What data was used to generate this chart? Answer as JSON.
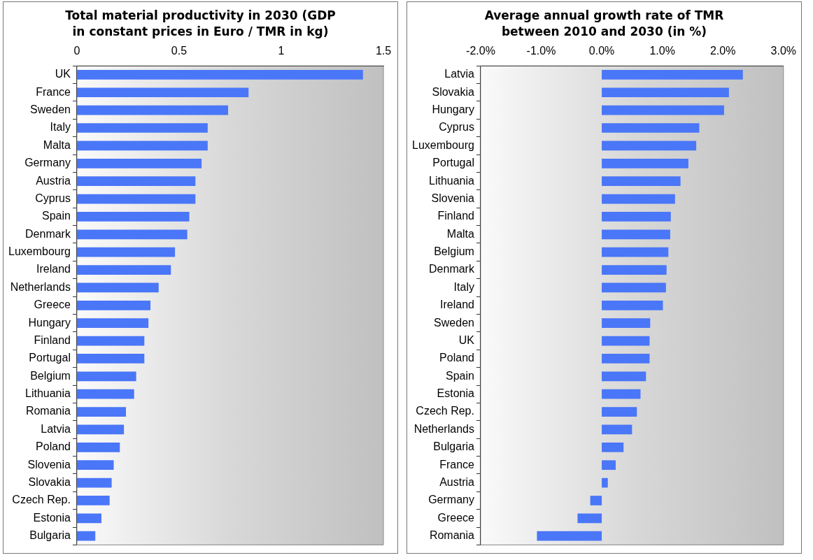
{
  "chart_data": [
    {
      "type": "bar",
      "orientation": "horizontal",
      "title": "Total material productivity in 2030 (GDP in constant prices in Euro / TMR in kg)",
      "categories": [
        "UK",
        "France",
        "Sweden",
        "Italy",
        "Malta",
        "Germany",
        "Austria",
        "Cyprus",
        "Spain",
        "Denmark",
        "Luxembourg",
        "Ireland",
        "Netherlands",
        "Greece",
        "Hungary",
        "Finland",
        "Portugal",
        "Belgium",
        "Lithuania",
        "Romania",
        "Latvia",
        "Poland",
        "Slovenia",
        "Slovakia",
        "Czech Rep.",
        "Estonia",
        "Bulgaria"
      ],
      "values": [
        1.4,
        0.84,
        0.74,
        0.64,
        0.64,
        0.61,
        0.58,
        0.58,
        0.55,
        0.54,
        0.48,
        0.46,
        0.4,
        0.36,
        0.35,
        0.33,
        0.33,
        0.29,
        0.28,
        0.24,
        0.23,
        0.21,
        0.18,
        0.17,
        0.16,
        0.12,
        0.09
      ],
      "color": "#4a76f8",
      "xlim": [
        0,
        1.5
      ],
      "xticks": [
        0,
        0.5,
        1,
        1.5
      ],
      "grid": false,
      "legend": false
    },
    {
      "type": "bar",
      "orientation": "horizontal",
      "title": "Average annual growth rate of TMR between 2010 and 2030 (in %)",
      "categories": [
        "Latvia",
        "Slovakia",
        "Hungary",
        "Cyprus",
        "Luxembourg",
        "Portugal",
        "Lithuania",
        "Slovenia",
        "Finland",
        "Malta",
        "Belgium",
        "Denmark",
        "Italy",
        "Ireland",
        "Sweden",
        "UK",
        "Poland",
        "Spain",
        "Estonia",
        "Czech Rep.",
        "Netherlands",
        "Bulgaria",
        "France",
        "Austria",
        "Germany",
        "Greece",
        "Romania"
      ],
      "values": [
        2.33,
        2.1,
        2.02,
        1.61,
        1.56,
        1.43,
        1.3,
        1.21,
        1.14,
        1.13,
        1.1,
        1.07,
        1.06,
        1.01,
        0.8,
        0.79,
        0.79,
        0.73,
        0.64,
        0.58,
        0.5,
        0.36,
        0.23,
        0.1,
        -0.19,
        -0.4,
        -1.07
      ],
      "color": "#4a76f8",
      "xlim": [
        -2,
        3
      ],
      "xticks": [
        {
          "value": -2,
          "label": "-2.0%"
        },
        {
          "value": -1,
          "label": "-1.0%"
        },
        {
          "value": 0,
          "label": "0.0%"
        },
        {
          "value": 1,
          "label": "1.0%"
        },
        {
          "value": 2,
          "label": "2.0%"
        },
        {
          "value": 3,
          "label": "3.0%"
        }
      ],
      "grid": false,
      "legend": false
    }
  ]
}
